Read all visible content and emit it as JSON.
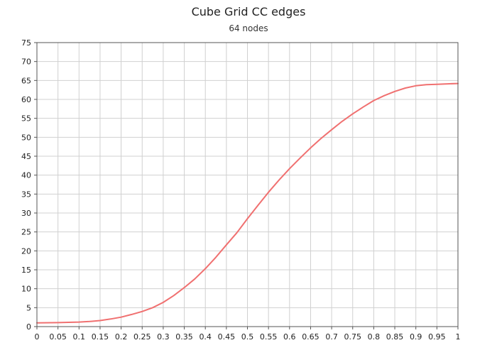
{
  "chart_data": {
    "type": "line",
    "title": "Cube Grid CC edges",
    "subtitle": "64 nodes",
    "xlabel": "",
    "ylabel": "",
    "xlim": [
      0,
      1
    ],
    "ylim": [
      0,
      75
    ],
    "grid": true,
    "x_ticks": [
      "0",
      "0.05",
      "0.1",
      "0.15",
      "0.2",
      "0.25",
      "0.3",
      "0.35",
      "0.4",
      "0.45",
      "0.5",
      "0.55",
      "0.6",
      "0.65",
      "0.7",
      "0.75",
      "0.8",
      "0.85",
      "0.9",
      "0.95",
      "1"
    ],
    "y_ticks": [
      "0",
      "5",
      "10",
      "15",
      "20",
      "25",
      "30",
      "35",
      "40",
      "45",
      "50",
      "55",
      "60",
      "65",
      "70",
      "75"
    ],
    "series": [
      {
        "color": "#f07070",
        "x": [
          0,
          0.05,
          0.1,
          0.125,
          0.15,
          0.175,
          0.2,
          0.225,
          0.25,
          0.275,
          0.3,
          0.325,
          0.35,
          0.375,
          0.4,
          0.425,
          0.45,
          0.475,
          0.5,
          0.525,
          0.55,
          0.575,
          0.6,
          0.625,
          0.65,
          0.675,
          0.7,
          0.725,
          0.75,
          0.775,
          0.8,
          0.825,
          0.85,
          0.875,
          0.9,
          0.925,
          0.95,
          0.975,
          1
        ],
        "y": [
          1,
          1.05,
          1.2,
          1.35,
          1.6,
          2.0,
          2.5,
          3.2,
          4.0,
          5.0,
          6.4,
          8.2,
          10.3,
          12.6,
          15.3,
          18.3,
          21.6,
          24.8,
          28.5,
          32.0,
          35.5,
          38.7,
          41.7,
          44.5,
          47.2,
          49.7,
          52.0,
          54.2,
          56.2,
          58.0,
          59.7,
          61.0,
          62.1,
          63.0,
          63.6,
          63.9,
          64.0,
          64.1,
          64.2
        ]
      }
    ]
  }
}
